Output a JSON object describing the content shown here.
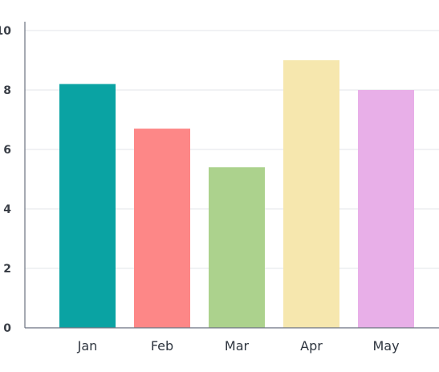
{
  "chart_data": {
    "type": "bar",
    "categories": [
      "Jan",
      "Feb",
      "Mar",
      "Apr",
      "May"
    ],
    "values": [
      8.2,
      6.7,
      5.4,
      9.0,
      8.0
    ],
    "colors": [
      "#0aa3a3",
      "#fd8787",
      "#acd28d",
      "#f6e7ae",
      "#e8afe8"
    ],
    "ylim": [
      0,
      10
    ],
    "yticks": [
      0,
      2,
      4,
      6,
      8,
      10
    ],
    "ytick_labels": [
      "0",
      "2",
      "4",
      "6",
      "8",
      "10"
    ],
    "title": "",
    "xlabel": "",
    "ylabel": "",
    "grid": true
  }
}
